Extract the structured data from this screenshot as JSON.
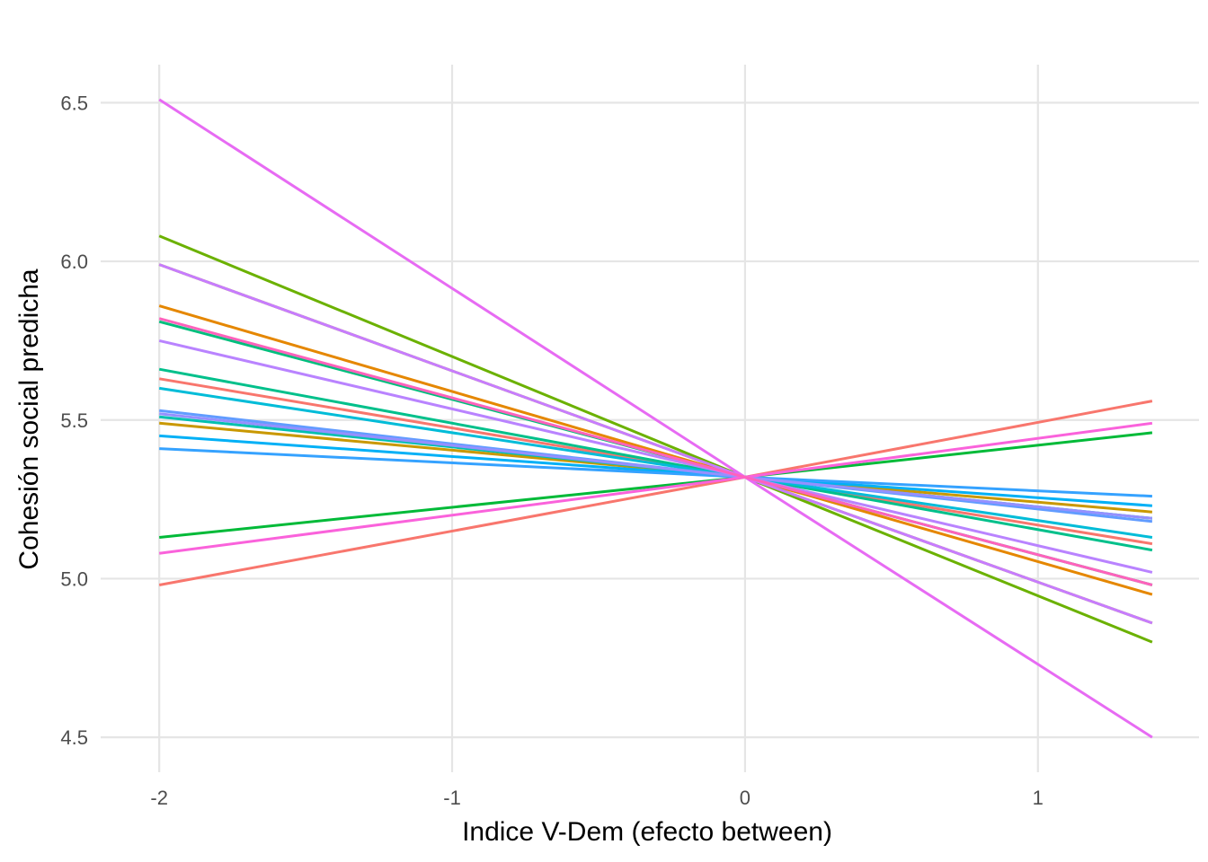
{
  "chart_data": {
    "type": "line",
    "title": "",
    "xlabel": "Indice V-Dem (efecto between)",
    "ylabel": "Cohesión social predicha",
    "xlim": [
      -2.2,
      1.55
    ],
    "ylim": [
      4.39,
      6.62
    ],
    "x_ticks": [
      -2,
      -1,
      0,
      1
    ],
    "x_tick_labels": [
      "-2",
      "-1",
      "0",
      "1"
    ],
    "y_ticks": [
      4.5,
      5.0,
      5.5,
      6.0,
      6.5
    ],
    "y_tick_labels": [
      "4.5",
      "5.0",
      "5.5",
      "6.0",
      "6.5"
    ],
    "grid": true,
    "legend": "none",
    "x": [
      -2,
      0,
      1.39
    ],
    "series": [
      {
        "color": "#F8766D",
        "values": [
          4.98,
          5.32,
          5.56
        ]
      },
      {
        "color": "#F8766D",
        "values": [
          5.63,
          5.32,
          5.11
        ]
      },
      {
        "color": "#E58700",
        "values": [
          5.86,
          5.32,
          4.95
        ]
      },
      {
        "color": "#C99800",
        "values": [
          5.49,
          5.32,
          5.21
        ]
      },
      {
        "color": "#A3A500",
        "values": [
          5.99,
          5.32,
          4.86
        ]
      },
      {
        "color": "#6BB100",
        "values": [
          6.08,
          5.32,
          4.8
        ]
      },
      {
        "color": "#00BA38",
        "values": [
          5.13,
          5.32,
          5.46
        ]
      },
      {
        "color": "#00BF7D",
        "values": [
          5.81,
          5.32,
          4.98
        ]
      },
      {
        "color": "#00C08B",
        "values": [
          5.66,
          5.32,
          5.09
        ]
      },
      {
        "color": "#00C0AF",
        "values": [
          5.51,
          5.32,
          5.19
        ]
      },
      {
        "color": "#00BCD8",
        "values": [
          5.6,
          5.32,
          5.13
        ]
      },
      {
        "color": "#00B0F6",
        "values": [
          5.45,
          5.32,
          5.23
        ]
      },
      {
        "color": "#35A2FF",
        "values": [
          5.41,
          5.32,
          5.26
        ]
      },
      {
        "color": "#619CFF",
        "values": [
          5.53,
          5.32,
          5.18
        ]
      },
      {
        "color": "#9590FF",
        "values": [
          5.52,
          5.32,
          5.19
        ]
      },
      {
        "color": "#B983FF",
        "values": [
          5.75,
          5.32,
          5.02
        ]
      },
      {
        "color": "#C77CFF",
        "values": [
          5.99,
          5.32,
          4.86
        ]
      },
      {
        "color": "#E76BF3",
        "values": [
          6.51,
          5.32,
          4.5
        ]
      },
      {
        "color": "#FA62DB",
        "values": [
          5.08,
          5.32,
          5.49
        ]
      },
      {
        "color": "#FF62BC",
        "values": [
          5.82,
          5.32,
          4.98
        ]
      }
    ]
  }
}
